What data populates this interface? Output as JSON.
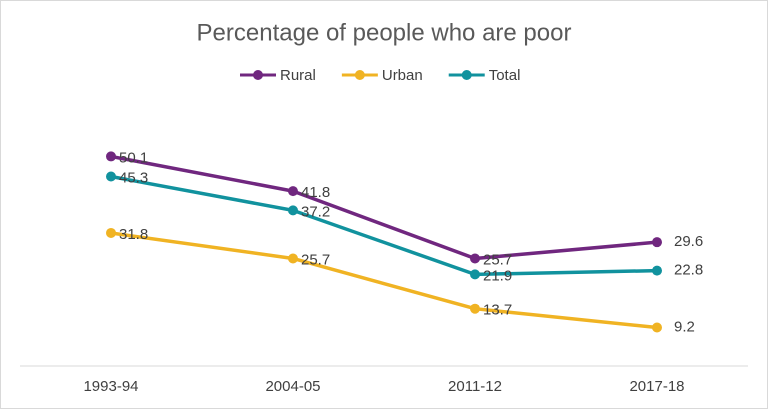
{
  "chart_data": {
    "type": "line",
    "title": "Percentage of people who are poor",
    "categories": [
      "1993-94",
      "2004-05",
      "2011-12",
      "2017-18"
    ],
    "series": [
      {
        "name": "Rural",
        "color": "#70277f",
        "values": [
          50.1,
          41.8,
          25.7,
          29.6
        ]
      },
      {
        "name": "Urban",
        "color": "#f0b323",
        "values": [
          31.8,
          25.7,
          13.7,
          9.2
        ]
      },
      {
        "name": "Total",
        "color": "#11929e",
        "values": [
          45.3,
          37.2,
          21.9,
          22.8
        ]
      }
    ],
    "ylim": [
      0,
      60
    ],
    "legend": "top"
  }
}
